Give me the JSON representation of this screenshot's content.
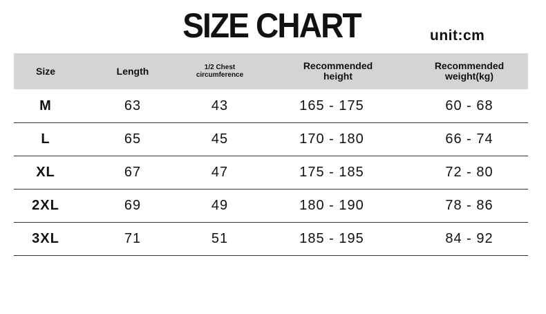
{
  "title": "SIZE CHART",
  "unit": "unit:cm",
  "headers": [
    "Size",
    "Length",
    "1/2 Chest circumference",
    "Recommended height",
    "Recommended weight(kg)"
  ],
  "rows": [
    [
      "M",
      "63",
      "43",
      "165 - 175",
      "60 - 68"
    ],
    [
      "L",
      "65",
      "45",
      "170 - 180",
      "66 - 74"
    ],
    [
      "XL",
      "67",
      "47",
      "175 - 185",
      "72 - 80"
    ],
    [
      "2XL",
      "69",
      "49",
      "180 - 190",
      "78 - 86"
    ],
    [
      "3XL",
      "71",
      "51",
      "185 - 195",
      "84 - 92"
    ]
  ]
}
